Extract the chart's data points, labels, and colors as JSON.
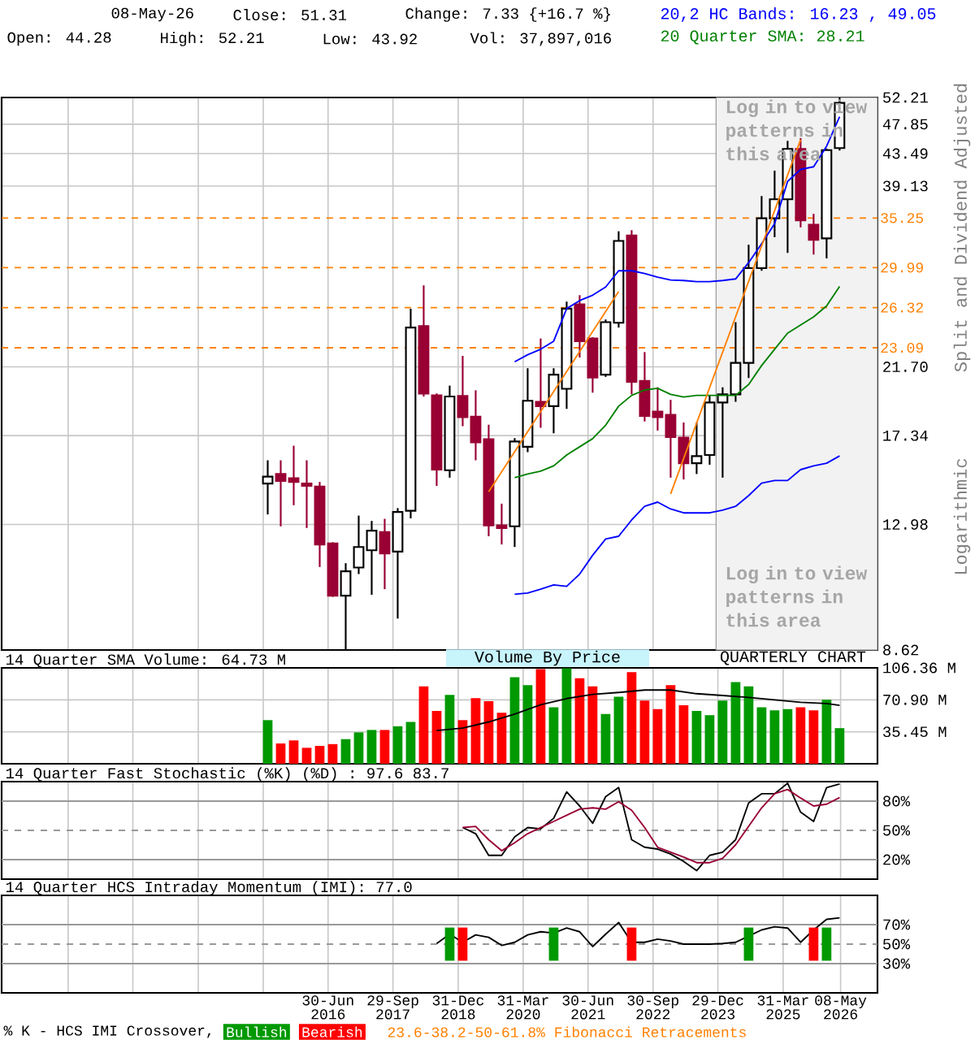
{
  "chart_data": [
    {
      "type": "candlestick",
      "ylabel": "Split and Dividend Adjusted",
      "annotations": [
        "08-May-26",
        "Close: 51.31",
        "Change: 7.33 {+16.7 %}",
        "Open: 44.28",
        "High: 52.21",
        "Low: 43.92",
        "Vol: 37,897,016",
        "Log in to view patterns in this area",
        "Log in to view patterns in this area",
        "Logarithmic",
        "23.6-38.2-50-61.8% Fibonacci Retracements"
      ],
      "x": [
        "2015-05",
        "2015-08",
        "2015-11",
        "2016-02",
        "2016-05",
        "2016-08",
        "2016-11",
        "2017-02",
        "2017-05",
        "2017-08",
        "2017-11",
        "2018-02",
        "2018-05",
        "2018-08",
        "2018-11",
        "2019-02",
        "2019-05",
        "2019-08",
        "2019-11",
        "2020-02",
        "2020-05",
        "2020-08",
        "2020-11",
        "2021-02",
        "2021-05",
        "2021-08",
        "2021-11",
        "2022-02",
        "2022-05",
        "2022-08",
        "2022-11",
        "2023-02",
        "2023-05",
        "2023-08",
        "2023-11",
        "2024-02",
        "2024-05",
        "2024-08",
        "2024-11",
        "2025-02",
        "2025-05",
        "2025-08",
        "2025-11",
        "2026-02",
        "2026-05"
      ],
      "ohlc": [
        [
          14.83,
          16.0,
          13.41,
          15.17
        ],
        [
          15.3,
          16.0,
          12.9,
          14.96
        ],
        [
          15.09,
          16.78,
          13.82,
          14.91
        ],
        [
          14.83,
          16.0,
          12.83,
          14.72
        ],
        [
          14.69,
          14.91,
          11.3,
          12.16
        ],
        [
          12.2,
          12.25,
          10.25,
          10.29
        ],
        [
          10.29,
          11.44,
          8.62,
          11.14
        ],
        [
          11.28,
          13.36,
          11.04,
          12.06
        ],
        [
          11.93,
          13.13,
          10.32,
          12.72
        ],
        [
          12.66,
          13.22,
          10.51,
          11.81
        ],
        [
          11.88,
          13.69,
          9.55,
          13.52
        ],
        [
          13.57,
          26.23,
          13.24,
          24.66
        ],
        [
          24.79,
          28.3,
          19.7,
          19.88
        ],
        [
          19.77,
          19.9,
          14.72,
          15.52
        ],
        [
          15.49,
          20.41,
          15.12,
          19.7
        ],
        [
          19.74,
          22.49,
          17.88,
          18.42
        ],
        [
          18.45,
          20.1,
          16.0,
          16.96
        ],
        [
          17.14,
          17.97,
          12.49,
          12.94
        ],
        [
          12.94,
          13.89,
          12.16,
          12.83
        ],
        [
          12.9,
          17.2,
          12.06,
          17.01
        ],
        [
          16.72,
          21.6,
          16.43,
          19.43
        ],
        [
          19.36,
          23.8,
          17.79,
          19.09
        ],
        [
          19.09,
          21.6,
          17.47,
          21.15
        ],
        [
          20.2,
          26.84,
          18.92,
          26.23
        ],
        [
          26.6,
          27.41,
          22.37,
          23.59
        ],
        [
          23.8,
          23.9,
          19.95,
          20.96
        ],
        [
          21.15,
          25.32,
          21.0,
          25.1
        ],
        [
          25.05,
          33.76,
          24.66,
          32.71
        ],
        [
          33.29,
          33.88,
          19.84,
          20.67
        ],
        [
          20.72,
          22.77,
          18.16,
          18.49
        ],
        [
          18.75,
          20.3,
          17.63,
          18.42
        ],
        [
          18.55,
          19.49,
          15.12,
          17.26
        ],
        [
          17.23,
          18.1,
          15.03,
          15.85
        ],
        [
          15.85,
          18.1,
          15.3,
          16.22
        ],
        [
          16.28,
          19.77,
          15.77,
          19.32
        ],
        [
          19.32,
          20.3,
          15.12,
          19.84
        ],
        [
          19.84,
          25.1,
          19.36,
          21.98
        ],
        [
          21.98,
          32.31,
          20.92,
          29.94
        ],
        [
          29.94,
          37.87,
          29.68,
          35.23
        ],
        [
          35.23,
          41.14,
          33.12,
          37.47
        ],
        [
          37.47,
          45.33,
          31.46,
          44.16
        ],
        [
          44.16,
          45.74,
          34.19,
          34.98
        ],
        [
          34.49,
          35.73,
          31.29,
          32.82
        ],
        [
          32.99,
          44.2,
          30.9,
          43.98
        ],
        [
          44.28,
          52.21,
          43.92,
          51.31
        ]
      ],
      "color": "#000000",
      "colors": [
        "#ffffff",
        "#990033",
        "#990033",
        "#990033",
        "#990033",
        "#990033",
        "#ffffff",
        "#ffffff",
        "#ffffff",
        "#990033",
        "#ffffff",
        "#ffffff",
        "#990033",
        "#990033",
        "#ffffff",
        "#990033",
        "#990033",
        "#990033",
        "#990033",
        "#ffffff",
        "#ffffff",
        "#990033",
        "#ffffff",
        "#ffffff",
        "#990033",
        "#990033",
        "#ffffff",
        "#ffffff",
        "#990033",
        "#990033",
        "#990033",
        "#990033",
        "#990033",
        "#ffffff",
        "#ffffff",
        "#ffffff",
        "#ffffff",
        "#ffffff",
        "#ffffff",
        "#ffffff",
        "#ffffff",
        "#990033",
        "#990033",
        "#ffffff",
        "#ffffff"
      ],
      "series": [
        {
          "type": "line",
          "name": "20,2 HC Bands: 16.23 , 49.05",
          "color": "#0000ff",
          "x": [
            "2020-02",
            "2020-05",
            "2020-08",
            "2020-11",
            "2021-02",
            "2021-05",
            "2021-08",
            "2021-11",
            "2022-02",
            "2022-05",
            "2022-08",
            "2022-11",
            "2023-02",
            "2023-05",
            "2023-08",
            "2023-11",
            "2024-02",
            "2024-05",
            "2024-08",
            "2024-11",
            "2025-02",
            "2025-05",
            "2025-08",
            "2025-11",
            "2026-02",
            "2026-05"
          ],
          "values": [
            22.06,
            22.57,
            22.98,
            23.59,
            26.23,
            26.93,
            27.41,
            28.15,
            29.68,
            29.68,
            29.42,
            29.06,
            28.8,
            28.75,
            28.65,
            28.65,
            28.75,
            28.9,
            30.48,
            32.42,
            34.61,
            39.72,
            41.3,
            41.66,
            44.55,
            49.05
          ]
        },
        {
          "type": "line",
          "color": "#0000ff",
          "x": [
            "2020-02",
            "2020-05",
            "2020-08",
            "2020-11",
            "2021-02",
            "2021-05",
            "2021-08",
            "2021-11",
            "2022-02",
            "2022-05",
            "2022-08",
            "2022-11",
            "2023-02",
            "2023-05",
            "2023-08",
            "2023-11",
            "2024-02",
            "2024-05",
            "2024-08",
            "2024-11",
            "2025-02",
            "2025-05",
            "2025-08",
            "2025-11",
            "2026-02",
            "2026-05"
          ],
          "values": [
            10.34,
            10.38,
            10.51,
            10.66,
            10.61,
            11.04,
            11.74,
            12.38,
            12.49,
            13.17,
            13.77,
            13.96,
            13.65,
            13.48,
            13.48,
            13.48,
            13.6,
            13.77,
            14.26,
            14.85,
            14.98,
            14.98,
            15.52,
            15.71,
            15.85,
            16.23
          ]
        },
        {
          "type": "line",
          "name": "20 Quarter SMA: 28.21",
          "color": "#008000",
          "x": [
            "2020-02",
            "2020-05",
            "2020-08",
            "2020-11",
            "2021-02",
            "2021-05",
            "2021-08",
            "2021-11",
            "2022-02",
            "2022-05",
            "2022-08",
            "2022-11",
            "2023-02",
            "2023-05",
            "2023-08",
            "2023-11",
            "2024-02",
            "2024-05",
            "2024-08",
            "2024-11",
            "2025-02",
            "2025-05",
            "2025-08",
            "2025-11",
            "2026-02",
            "2026-05"
          ],
          "values": [
            15.12,
            15.3,
            15.44,
            15.71,
            16.28,
            16.72,
            17.17,
            17.94,
            19.09,
            19.77,
            20.12,
            20.23,
            19.84,
            19.67,
            19.77,
            19.77,
            19.77,
            19.77,
            20.48,
            21.79,
            22.98,
            24.22,
            24.87,
            25.54,
            26.46,
            28.21
          ]
        },
        {
          "type": "line",
          "color": "#ff8000",
          "x": [
            "2019-08",
            "2022-02"
          ],
          "values": [
            14.44,
            27.75
          ]
        },
        {
          "type": "line",
          "color": "#ff8000",
          "x": [
            "2023-02",
            "2025-08"
          ],
          "values": [
            14.34,
            45.5
          ]
        }
      ],
      "ref_lines": [
        {
          "axis": "y",
          "value": 35.25,
          "label": "35.25",
          "color": "#ff8000",
          "line_style": "dashed"
        },
        {
          "axis": "y",
          "value": 29.99,
          "label": "29.99",
          "color": "#ff8000",
          "line_style": "dashed"
        },
        {
          "axis": "y",
          "value": 26.32,
          "label": "26.32",
          "color": "#ff8000",
          "line_style": "dashed"
        },
        {
          "axis": "y",
          "value": 23.09,
          "label": "23.09",
          "color": "#ff8000",
          "line_style": "dashed"
        }
      ],
      "bands": [
        {
          "axis": "x",
          "from": "2023-12-16",
          "to": "2027-01-24",
          "color": "#f2f2f2"
        }
      ],
      "xlim": [
        "2010-03-19",
        "2027-01-24"
      ],
      "ylim": [
        8.62,
        52.21
      ],
      "xticks": [
        {
          "value": "2011-06-30",
          "label": null
        },
        {
          "value": "2012-09-28",
          "label": null
        },
        {
          "value": "2013-12-31",
          "label": null
        },
        {
          "value": "2015-03-31",
          "label": null
        },
        {
          "value": "2016-06-30",
          "label": null
        },
        {
          "value": "2017-09-29",
          "label": null
        },
        {
          "value": "2018-12-31",
          "label": null
        },
        {
          "value": "2020-03-31",
          "label": null
        },
        {
          "value": "2021-06-30",
          "label": null
        },
        {
          "value": "2022-09-30",
          "label": null
        },
        {
          "value": "2023-12-29",
          "label": null
        },
        {
          "value": "2025-03-31",
          "label": null
        },
        {
          "value": "2026-05-08",
          "label": null
        }
      ],
      "yticks": [
        52.21,
        47.85,
        43.49,
        39.13,
        {
          "value": 21.7,
          "label": "21.70"
        },
        17.34,
        12.98,
        8.62
      ],
      "log": "y",
      "grid": true,
      "legend": "top right",
      "tick_labels": "y"
    },
    {
      "type": "bar",
      "title": "14 Quarter SMA Volume: 64.73 M",
      "annotations": [
        "Volume By Price",
        "QUARTERLY CHART"
      ],
      "x": [
        "2015-05",
        "2015-08",
        "2015-11",
        "2016-02",
        "2016-05",
        "2016-08",
        "2016-11",
        "2017-02",
        "2017-05",
        "2017-08",
        "2017-11",
        "2018-02",
        "2018-05",
        "2018-08",
        "2018-11",
        "2019-02",
        "2019-05",
        "2019-08",
        "2019-11",
        "2020-02",
        "2020-05",
        "2020-08",
        "2020-11",
        "2021-02",
        "2021-05",
        "2021-08",
        "2021-11",
        "2022-02",
        "2022-05",
        "2022-08",
        "2022-11",
        "2023-02",
        "2023-05",
        "2023-08",
        "2023-11",
        "2024-02",
        "2024-05",
        "2024-08",
        "2024-11",
        "2025-02",
        "2025-05",
        "2025-08",
        "2025-11",
        "2026-02",
        "2026-05"
      ],
      "series": [
        {
          "values": [
            48.4,
            22.5,
            25.9,
            17.7,
            19.8,
            21.8,
            27.3,
            34.8,
            37.5,
            37.5,
            41.6,
            46.4,
            85.9,
            58.6,
            76.4,
            48.4,
            72.9,
            69.5,
            56.6,
            96.1,
            87.3,
            105.0,
            62.7,
            106.0,
            94.8,
            85.9,
            55.2,
            74.3,
            101.6,
            70.2,
            60.7,
            87.3,
            64.8,
            58.6,
            53.9,
            70.2,
            90.7,
            85.9,
            62.7,
            59.3,
            60.7,
            62.7,
            59.3,
            70.9,
            39.5
          ],
          "colors": [
            "#009900",
            "#ff0000",
            "#ff0000",
            "#ff0000",
            "#ff0000",
            "#ff0000",
            "#009900",
            "#009900",
            "#009900",
            "#ff0000",
            "#009900",
            "#009900",
            "#ff0000",
            "#ff0000",
            "#009900",
            "#ff0000",
            "#ff0000",
            "#ff0000",
            "#ff0000",
            "#009900",
            "#009900",
            "#ff0000",
            "#009900",
            "#009900",
            "#ff0000",
            "#ff0000",
            "#009900",
            "#009900",
            "#ff0000",
            "#ff0000",
            "#ff0000",
            "#ff0000",
            "#ff0000",
            "#009900",
            "#009900",
            "#009900",
            "#009900",
            "#009900",
            "#009900",
            "#009900",
            "#009900",
            "#ff0000",
            "#ff0000",
            "#009900",
            "#009900"
          ]
        },
        {
          "type": "line",
          "color": "#000000",
          "x": [
            "2018-08",
            "2019-02",
            "2019-08",
            "2020-02",
            "2020-08",
            "2021-02",
            "2021-08",
            "2022-02",
            "2022-08",
            "2023-02",
            "2023-08",
            "2024-02",
            "2024-08",
            "2025-02",
            "2025-08",
            "2026-02",
            "2026-05"
          ],
          "values": [
            36.8,
            39.5,
            46.4,
            55.2,
            65.4,
            72.3,
            77.0,
            79.1,
            81.8,
            81.8,
            77.7,
            75.7,
            73.6,
            70.9,
            68.2,
            66.8,
            64.73
          ]
        }
      ],
      "xlim": [
        "2010-03-19",
        "2027-01-24"
      ],
      "ylim": [
        0,
        106.36
      ],
      "xticks": [
        {
          "value": "2011-06-30",
          "label": null
        },
        {
          "value": "2012-09-28",
          "label": null
        },
        {
          "value": "2013-12-31",
          "label": null
        },
        {
          "value": "2015-03-31",
          "label": null
        },
        {
          "value": "2016-06-30",
          "label": null
        },
        {
          "value": "2017-09-29",
          "label": null
        },
        {
          "value": "2018-12-31",
          "label": null
        },
        {
          "value": "2020-03-31",
          "label": null
        },
        {
          "value": "2021-06-30",
          "label": null
        },
        {
          "value": "2022-09-30",
          "label": null
        },
        {
          "value": "2023-12-29",
          "label": null
        },
        {
          "value": "2025-03-31",
          "label": null
        },
        {
          "value": "2026-05-08",
          "label": null
        }
      ],
      "yticks": [
        {
          "value": 35.45,
          "label": "35.45 M"
        },
        {
          "value": 70.9,
          "label": "70.90 M"
        },
        {
          "value": 106.36,
          "label": "106.36 M"
        }
      ],
      "grid": true,
      "tick_labels": "y"
    },
    {
      "type": "line",
      "title": "14 Quarter Fast Stochastic (%K) (%D) : 97.6  83.7",
      "series": [
        {
          "color": "#000000",
          "x": [
            "2019-02",
            "2019-05",
            "2019-08",
            "2019-11",
            "2020-02",
            "2020-05",
            "2020-08",
            "2020-11",
            "2021-02",
            "2021-05",
            "2021-08",
            "2021-11",
            "2022-02",
            "2022-05",
            "2022-08",
            "2022-11",
            "2023-02",
            "2023-05",
            "2023-08",
            "2023-11",
            "2024-02",
            "2024-05",
            "2024-08",
            "2024-11",
            "2025-02",
            "2025-05",
            "2025-08",
            "2025-11",
            "2026-02",
            "2026-05"
          ],
          "values": [
            52.9,
            46.6,
            24.4,
            24.4,
            43.4,
            52.9,
            51.6,
            62.4,
            89.5,
            75.0,
            57.3,
            84.6,
            93.9,
            40.4,
            32.7,
            30.8,
            25.7,
            18.2,
            8.7,
            24.4,
            27.6,
            40.4,
            78.1,
            87.6,
            87.6,
            98.4,
            68.7,
            59.2,
            93.9,
            97.6
          ]
        },
        {
          "color": "#990033",
          "x": [
            "2019-02",
            "2019-05",
            "2019-08",
            "2019-11",
            "2020-02",
            "2020-05",
            "2020-08",
            "2020-11",
            "2021-02",
            "2021-05",
            "2021-08",
            "2021-11",
            "2022-02",
            "2022-05",
            "2022-08",
            "2022-11",
            "2023-02",
            "2023-05",
            "2023-08",
            "2023-11",
            "2024-02",
            "2024-05",
            "2024-08",
            "2024-11",
            "2025-02",
            "2025-05",
            "2025-08",
            "2025-11",
            "2026-02",
            "2026-05"
          ],
          "values": [
            52.9,
            54.1,
            40.4,
            29.1,
            37.3,
            46.6,
            52.9,
            59.2,
            65.5,
            71.8,
            73.1,
            71.8,
            79.4,
            70.6,
            52.9,
            32.7,
            27.6,
            22.6,
            16.9,
            16.9,
            21.3,
            35.2,
            54.1,
            73.1,
            87.6,
            92.0,
            83.2,
            75.0,
            76.9,
            83.7
          ]
        }
      ],
      "ref_lines": [
        {
          "axis": "y",
          "value": 80,
          "color": "#999999",
          "line_style": "solid"
        },
        {
          "axis": "y",
          "value": 50,
          "color": "#999999",
          "line_style": "dashed"
        },
        {
          "axis": "y",
          "value": 20,
          "color": "#999999",
          "line_style": "solid"
        }
      ],
      "xlim": [
        "2010-03-19",
        "2027-01-24"
      ],
      "ylim": [
        0,
        100
      ],
      "xticks": [
        {
          "value": "2011-06-30",
          "label": null
        },
        {
          "value": "2012-09-28",
          "label": null
        },
        {
          "value": "2013-12-31",
          "label": null
        },
        {
          "value": "2015-03-31",
          "label": null
        },
        {
          "value": "2016-06-30",
          "label": null
        },
        {
          "value": "2017-09-29",
          "label": null
        },
        {
          "value": "2018-12-31",
          "label": null
        },
        {
          "value": "2020-03-31",
          "label": null
        },
        {
          "value": "2021-06-30",
          "label": null
        },
        {
          "value": "2022-09-30",
          "label": null
        },
        {
          "value": "2023-12-29",
          "label": null
        },
        {
          "value": "2025-03-31",
          "label": null
        },
        {
          "value": "2026-05-08",
          "label": null
        }
      ],
      "yticks": [
        {
          "value": 20,
          "label": "20%"
        },
        {
          "value": 50,
          "label": "50%"
        },
        {
          "value": 80,
          "label": "80%"
        }
      ],
      "grid": "x",
      "tick_labels": "y"
    },
    {
      "type": "line",
      "title": "14 Quarter HCS Intraday Momentum (IMI): 77.0",
      "legend_title": "% K - HCS IMI Crossover,",
      "series": [
        {
          "color": "#000000",
          "x": [
            "2018-08",
            "2018-11",
            "2019-02",
            "2019-05",
            "2019-08",
            "2019-11",
            "2020-02",
            "2020-05",
            "2020-08",
            "2020-11",
            "2021-02",
            "2021-05",
            "2021-08",
            "2021-11",
            "2022-02",
            "2022-05",
            "2022-08",
            "2022-11",
            "2023-02",
            "2023-05",
            "2023-08",
            "2023-11",
            "2024-02",
            "2024-05",
            "2024-08",
            "2024-11",
            "2025-02",
            "2025-05",
            "2025-08",
            "2025-11",
            "2026-02",
            "2026-05"
          ],
          "values": [
            50.6,
            60.2,
            51.9,
            59.5,
            57.0,
            48.7,
            51.9,
            59.5,
            62.7,
            61.4,
            66.5,
            62.7,
            47.5,
            60.2,
            72.2,
            51.9,
            51.9,
            55.1,
            53.2,
            50,
            50,
            50,
            50.6,
            51.9,
            58.3,
            64.6,
            67.8,
            66.5,
            51.9,
            64.6,
            75.4,
            77.0
          ]
        },
        {
          "type": "bar",
          "name": "Bullish",
          "color": "#009900",
          "x": [
            "2018-11",
            "2020-11",
            "2024-08",
            "2026-02"
          ],
          "values": [
            34,
            34,
            34,
            34
          ],
          "base": [
            33,
            33,
            33,
            33
          ]
        },
        {
          "type": "bar",
          "name": "Bearish",
          "color": "#ff0000",
          "x": [
            "2019-02",
            "2022-05",
            "2025-11"
          ],
          "values": [
            34,
            34,
            34
          ],
          "base": [
            33,
            33,
            33
          ]
        }
      ],
      "ref_lines": [
        {
          "axis": "y",
          "value": 70,
          "color": "#999999",
          "line_style": "solid"
        },
        {
          "axis": "y",
          "value": 50,
          "color": "#999999",
          "line_style": "dashed"
        },
        {
          "axis": "y",
          "value": 30,
          "color": "#999999",
          "line_style": "solid"
        }
      ],
      "xlim": [
        "2010-03-19",
        "2027-01-24"
      ],
      "ylim": [
        0,
        100
      ],
      "xticks": [
        {
          "value": "2011-06-30",
          "label": null
        },
        {
          "value": "2012-09-28",
          "label": null
        },
        {
          "value": "2013-12-31",
          "label": null
        },
        {
          "value": "2015-03-31",
          "label": null
        },
        {
          "value": "2016-06-30",
          "label": "30-Jun 2016"
        },
        {
          "value": "2017-09-29",
          "label": "29-Sep 2017"
        },
        {
          "value": "2018-12-31",
          "label": "31-Dec 2018"
        },
        {
          "value": "2020-03-31",
          "label": "31-Mar 2020"
        },
        {
          "value": "2021-06-30",
          "label": "30-Jun 2021"
        },
        {
          "value": "2022-09-30",
          "label": "30-Sep 2022"
        },
        {
          "value": "2023-12-29",
          "label": "29-Dec 2023"
        },
        {
          "value": "2025-03-31",
          "label": "31-Mar 2025"
        },
        {
          "value": "2026-05-08",
          "label": "08-May 2026"
        }
      ],
      "yticks": [
        {
          "value": 30,
          "label": "30%"
        },
        {
          "value": 50,
          "label": "50%"
        },
        {
          "value": 70,
          "label": "70%"
        }
      ],
      "grid": "x",
      "legend": "bottom"
    }
  ]
}
